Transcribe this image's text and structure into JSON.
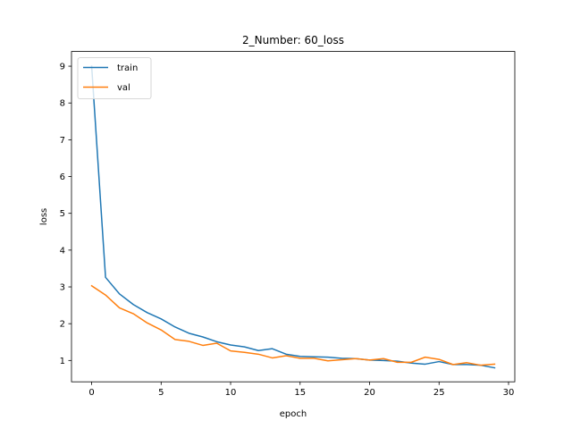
{
  "chart_data": {
    "type": "line",
    "title": "2_Number: 60_loss",
    "xlabel": "epoch",
    "ylabel": "loss",
    "xlim": [
      -1.45,
      30.45
    ],
    "ylim": [
      0.42,
      9.4
    ],
    "xticks": [
      0,
      5,
      10,
      15,
      20,
      25,
      30
    ],
    "yticks": [
      1,
      2,
      3,
      4,
      5,
      6,
      7,
      8,
      9
    ],
    "grid": false,
    "legend_position": "top-left",
    "x": [
      0,
      1,
      2,
      3,
      4,
      5,
      6,
      7,
      8,
      9,
      10,
      11,
      12,
      13,
      14,
      15,
      16,
      17,
      18,
      19,
      20,
      21,
      22,
      23,
      24,
      25,
      26,
      27,
      28,
      29
    ],
    "series": [
      {
        "name": "train",
        "color": "#1f77b4",
        "values": [
          9.0,
          3.26,
          2.81,
          2.52,
          2.3,
          2.13,
          1.91,
          1.74,
          1.64,
          1.51,
          1.42,
          1.37,
          1.27,
          1.32,
          1.17,
          1.11,
          1.1,
          1.09,
          1.06,
          1.05,
          1.01,
          1.0,
          0.98,
          0.93,
          0.9,
          0.97,
          0.89,
          0.89,
          0.87,
          0.8
        ]
      },
      {
        "name": "val",
        "color": "#ff7f0e",
        "values": [
          3.03,
          2.78,
          2.43,
          2.27,
          2.02,
          1.83,
          1.57,
          1.52,
          1.41,
          1.47,
          1.26,
          1.22,
          1.17,
          1.07,
          1.13,
          1.06,
          1.06,
          0.99,
          1.02,
          1.05,
          1.01,
          1.05,
          0.95,
          0.95,
          1.09,
          1.03,
          0.89,
          0.94,
          0.87,
          0.9
        ]
      }
    ]
  }
}
